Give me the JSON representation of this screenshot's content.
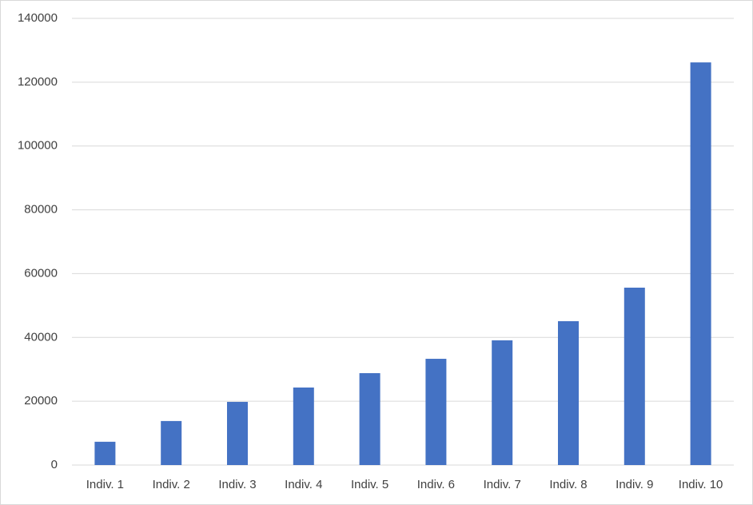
{
  "chart_data": {
    "type": "bar",
    "categories": [
      "Indiv. 1",
      "Indiv. 2",
      "Indiv. 3",
      "Indiv. 4",
      "Indiv. 5",
      "Indiv. 6",
      "Indiv. 7",
      "Indiv. 8",
      "Indiv. 9",
      "Indiv. 10"
    ],
    "values": [
      7300,
      13800,
      19800,
      24300,
      28800,
      33300,
      39100,
      45100,
      55600,
      126200
    ],
    "color": "#4472c4",
    "ylim": [
      0,
      140000
    ],
    "yticks": [
      0,
      20000,
      40000,
      60000,
      80000,
      100000,
      120000,
      140000
    ],
    "grid": true
  }
}
